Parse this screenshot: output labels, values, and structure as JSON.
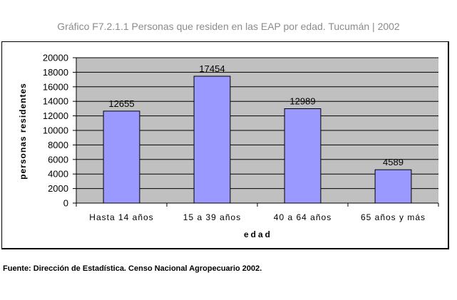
{
  "page": {
    "title": "Gráfico F7.2.1.1   Personas que residen en las EAP por edad. Tucumán | 2002",
    "source": "Fuente: Dirección de Estadística. Censo Nacional Agropecuario 2002."
  },
  "chart_data": {
    "type": "bar",
    "categories": [
      "Hasta 14 años",
      "15 a 39 años",
      "40 a 64 años",
      "65  años y más"
    ],
    "values": [
      12655,
      17454,
      12989,
      4589
    ],
    "data_labels": [
      "12655",
      "17454",
      "12989",
      "4589"
    ],
    "xlabel": "edad",
    "ylabel": "personas residentes",
    "ylim": [
      0,
      20000
    ],
    "yticks": [
      0,
      2000,
      4000,
      6000,
      8000,
      10000,
      12000,
      14000,
      16000,
      18000,
      20000
    ],
    "grid": true,
    "legend": "none",
    "colors": {
      "bar": "#9999ff",
      "bar_border": "#000000",
      "plot_background": "#c0c0c0",
      "gridline": "#000000"
    }
  }
}
